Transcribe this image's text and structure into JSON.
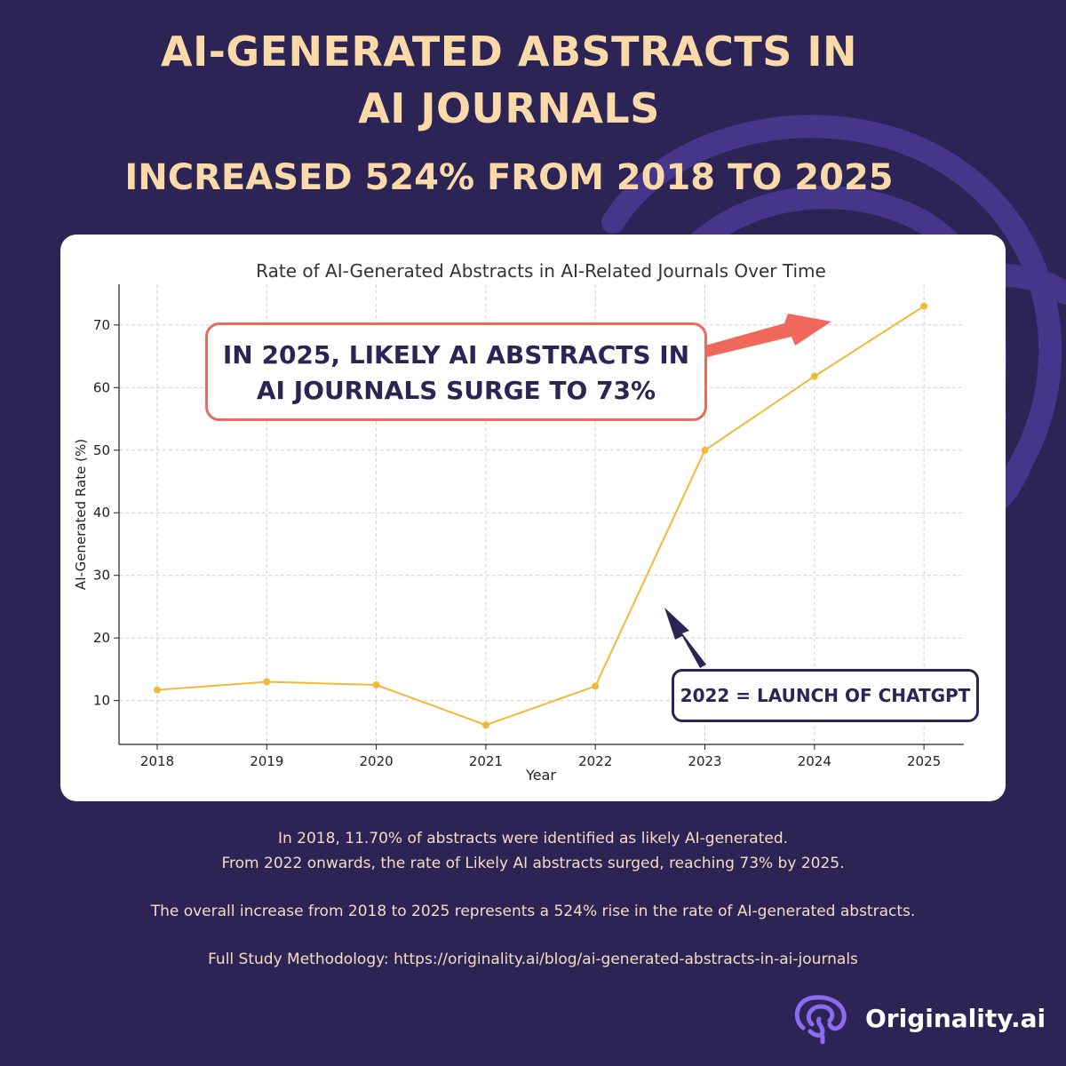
{
  "header": {
    "title_line1": "AI-GENERATED ABSTRACTS IN",
    "title_line2": "AI JOURNALS",
    "subtitle": "INCREASED 524% FROM 2018 TO 2025"
  },
  "chart_data": {
    "type": "line",
    "title": "Rate of AI-Generated Abstracts in AI-Related Journals Over Time",
    "xlabel": "Year",
    "ylabel": "AI-Generated Rate (%)",
    "categories": [
      "2018",
      "2019",
      "2020",
      "2021",
      "2022",
      "2023",
      "2024",
      "2025"
    ],
    "series": [
      {
        "values": [
          11.7,
          13.0,
          12.5,
          6.1,
          12.3,
          50.0,
          61.8,
          73.0
        ],
        "color": "#f0b93a"
      }
    ],
    "yticks": [
      10,
      20,
      30,
      40,
      50,
      60,
      70
    ],
    "ylim": [
      3,
      76.5
    ],
    "grid": true,
    "legend": "none",
    "annotations": [
      {
        "text_line1": "IN 2025, LIKELY AI ABSTRACTS IN",
        "text_line2": "AI JOURNALS SURGE TO 73%",
        "color": "#f0685c"
      },
      {
        "text": "2022 = LAUNCH OF CHATGPT",
        "color": "#2b2455"
      }
    ]
  },
  "footer": {
    "line1": "In 2018, 11.70% of abstracts were identified as likely AI-generated.",
    "line2": "From 2022 onwards, the rate of Likely AI abstracts surged, reaching 73% by 2025.",
    "line3": "The overall increase from 2018 to 2025 represents a 524% rise in the rate of AI-generated abstracts.",
    "line4": "Full Study Methodology: https://originality.ai/blog/ai-generated-abstracts-in-ai-journals"
  },
  "brand": {
    "name": "Originality.ai",
    "icon": "brain-icon",
    "colors": {
      "background": "#2b2455",
      "accent": "#fbd9a8",
      "line": "#f0b93a",
      "callout": "#f0685c",
      "logo": "#8b6cf0"
    }
  }
}
